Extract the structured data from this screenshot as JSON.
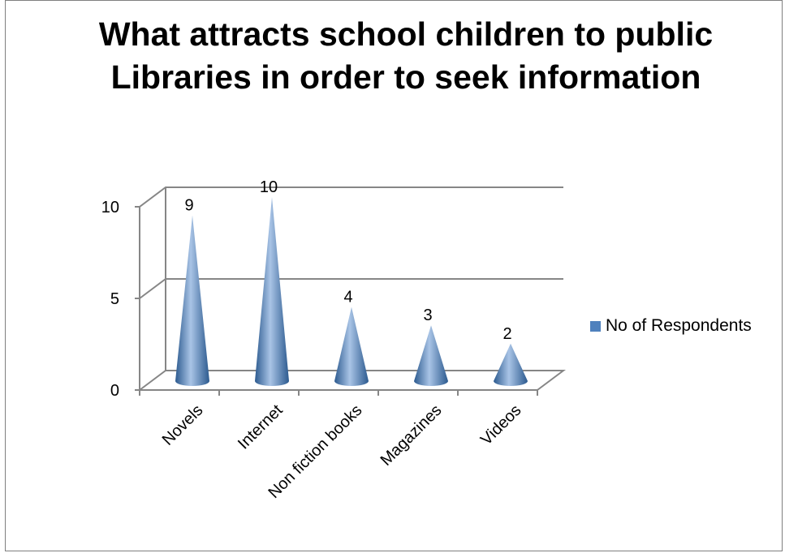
{
  "chart_data": {
    "type": "bar",
    "shape": "cone",
    "title": "What attracts school children to public Libraries in order to seek information",
    "categories": [
      "Novels",
      "Internet",
      "Non fiction books",
      "Magazines",
      "Videos"
    ],
    "series": [
      {
        "name": "No of Respondents",
        "values": [
          9,
          10,
          4,
          3,
          2
        ]
      }
    ],
    "yticks": [
      0,
      5,
      10
    ],
    "ylim": [
      0,
      10
    ],
    "xlabel": "",
    "ylabel": "",
    "grid": true,
    "legend": "right",
    "data_labels": true,
    "colors": {
      "series": "#4f81bd",
      "series_dark": "#2c5a8f",
      "series_light": "#a9c4e6",
      "axis": "#868686"
    }
  }
}
